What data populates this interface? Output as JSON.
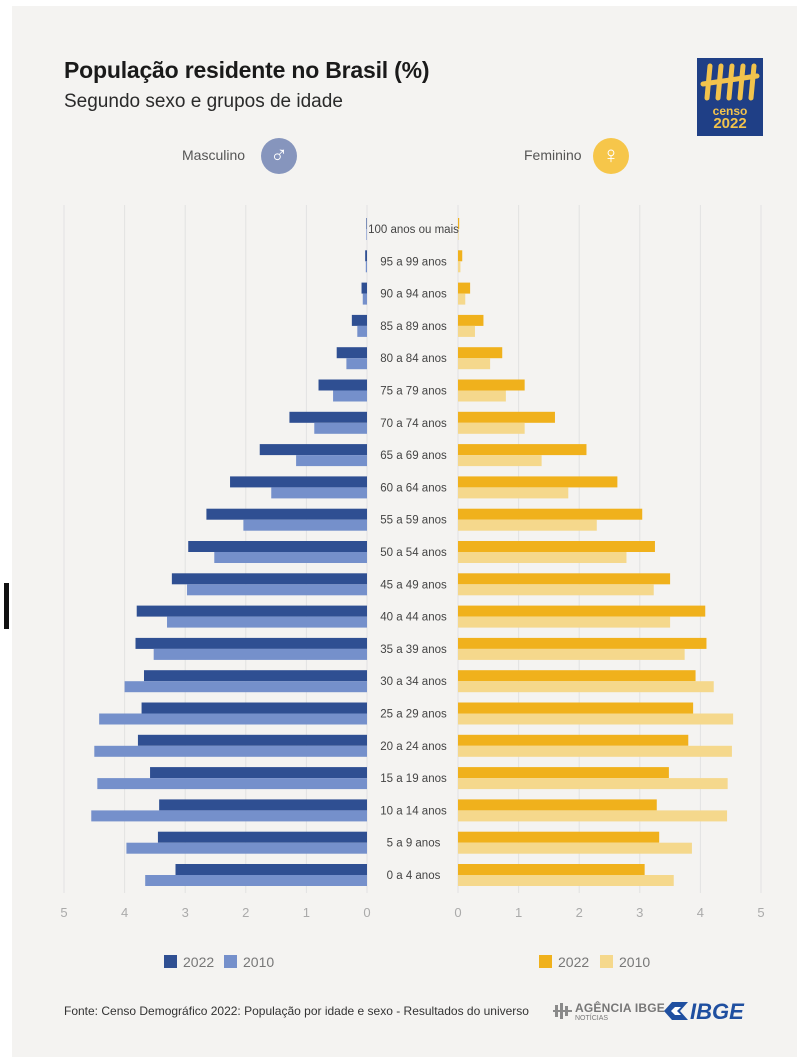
{
  "header": {
    "title": "População residente no Brasil (%)",
    "subtitle": "Segundo sexo e grupos de idade"
  },
  "logo": {
    "line1": "censo",
    "line2": "2022"
  },
  "sexes": {
    "male": {
      "label": "Masculino",
      "symbol": "♂",
      "color": "#8695bd"
    },
    "female": {
      "label": "Feminino",
      "symbol": "♀",
      "color": "#f6c64a"
    }
  },
  "colors": {
    "male_2022": "#2f4f92",
    "male_2010": "#7590cb",
    "female_2022": "#f0b11c",
    "female_2010": "#f5d88c",
    "grid": "#e2e2e2",
    "axis_text": "#aaaaaa"
  },
  "legend": {
    "male": [
      "2022",
      "2010"
    ],
    "female": [
      "2022",
      "2010"
    ]
  },
  "chart_data": {
    "type": "bar",
    "title": "População residente no Brasil (%)",
    "subtitle": "Segundo sexo e grupos de idade",
    "categories": [
      "100 anos ou mais",
      "95 a 99 anos",
      "90 a 94 anos",
      "85 a 89 anos",
      "80 a 84 anos",
      "75 a 79 anos",
      "70 a 74 anos",
      "65 a 69 anos",
      "60 a 64 anos",
      "55 a 59 anos",
      "50 a 54 anos",
      "45 a 49 anos",
      "40 a 44 anos",
      "35 a 39 anos",
      "30 a 34 anos",
      "25 a 29 anos",
      "20 a 24 anos",
      "15 a 19 anos",
      "10 a 14 anos",
      "5 a 9 anos",
      "0 a 4 anos"
    ],
    "series": [
      {
        "name": "2022",
        "side": "Masculino",
        "values": [
          0.01,
          0.03,
          0.09,
          0.25,
          0.5,
          0.8,
          1.28,
          1.77,
          2.26,
          2.65,
          2.95,
          3.22,
          3.8,
          3.82,
          3.68,
          3.72,
          3.78,
          3.58,
          3.43,
          3.45,
          3.16
        ]
      },
      {
        "name": "2010",
        "side": "Masculino",
        "values": [
          0.01,
          0.02,
          0.07,
          0.16,
          0.34,
          0.56,
          0.87,
          1.17,
          1.58,
          2.04,
          2.52,
          2.97,
          3.3,
          3.52,
          4.0,
          4.42,
          4.5,
          4.45,
          4.55,
          3.97,
          3.66
        ]
      },
      {
        "name": "2022",
        "side": "Feminino",
        "values": [
          0.02,
          0.07,
          0.2,
          0.42,
          0.73,
          1.1,
          1.6,
          2.12,
          2.63,
          3.04,
          3.25,
          3.5,
          4.08,
          4.1,
          3.92,
          3.88,
          3.8,
          3.48,
          3.28,
          3.32,
          3.08
        ]
      },
      {
        "name": "2010",
        "side": "Feminino",
        "values": [
          0.01,
          0.04,
          0.12,
          0.28,
          0.53,
          0.79,
          1.1,
          1.38,
          1.82,
          2.29,
          2.78,
          3.23,
          3.5,
          3.74,
          4.22,
          4.54,
          4.52,
          4.45,
          4.44,
          3.86,
          3.56
        ]
      }
    ],
    "xlim": [
      0,
      5
    ],
    "xticks": [
      "5",
      "4",
      "3",
      "2",
      "1",
      "0",
      "0",
      "1",
      "2",
      "3",
      "4",
      "5"
    ],
    "grid": true
  },
  "footer": {
    "source": "Fonte: Censo Demográfico 2022: População por idade e sexo - Resultados do universo",
    "agencia_line1": "AGÊNCIA IBGE",
    "agencia_line2": "NOTÍCIAS",
    "ibge": "IBGE"
  }
}
